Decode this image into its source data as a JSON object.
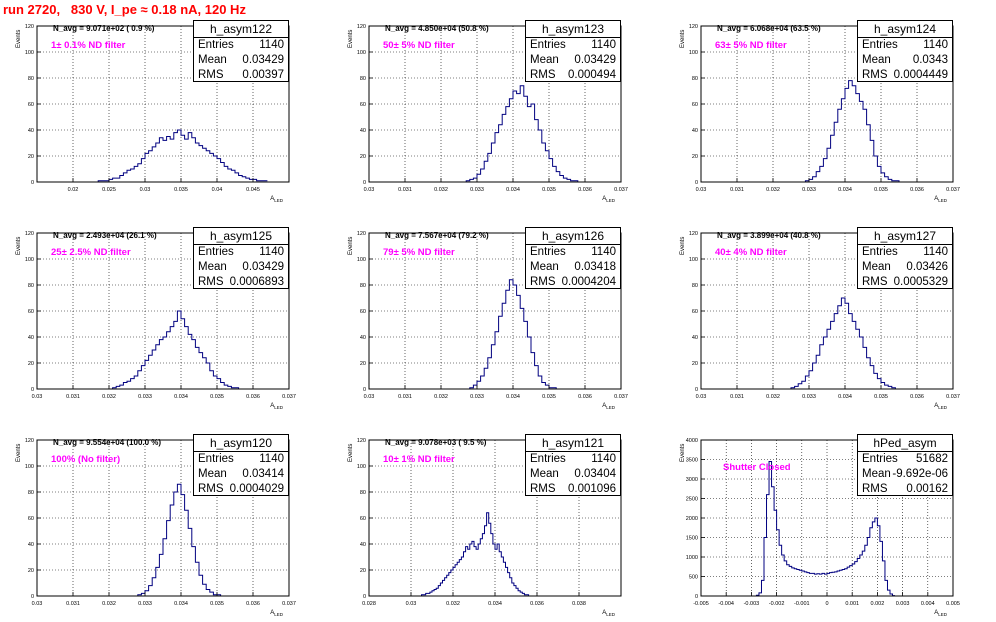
{
  "page_title": "run 2720,   830 V, I_pe ≈ 0.18 nA, 120 Hz",
  "colors": {
    "title": "#ff0000",
    "filter_text": "#ff00ff",
    "histogram_line": "#000080",
    "grid": "#000000"
  },
  "chart_data": [
    {
      "type": "histogram",
      "stats": {
        "name": "h_asym122",
        "entries": "1140",
        "mean": "0.03429",
        "rms": "0.00397"
      },
      "n_avg": "N_avg = 9.071e+02 ( 0.9 %)",
      "filter": "1± 0.1% ND filter",
      "ylabel": "Events",
      "xlabel": "A_LED",
      "xlim": [
        0.015,
        0.05
      ],
      "ylim": [
        0,
        120
      ],
      "xticks": [
        0.02,
        0.025,
        0.03,
        0.035,
        0.04,
        0.045
      ],
      "xtick_labels": [
        "0.02",
        "0.025",
        "0.03",
        "0.035",
        "0.04",
        "0.045"
      ],
      "yticks": [
        0,
        20,
        40,
        60,
        80,
        100,
        120
      ],
      "bins": {
        "start": 0.0235,
        "width": 0.0005,
        "counts": [
          1,
          1,
          1,
          2,
          3,
          3,
          5,
          7,
          9,
          10,
          12,
          14,
          18,
          22,
          24,
          27,
          30,
          34,
          32,
          35,
          33,
          38,
          40,
          36,
          33,
          38,
          34,
          30,
          28,
          26,
          24,
          22,
          20,
          18,
          15,
          12,
          10,
          9,
          7,
          5,
          4,
          3,
          2,
          2,
          1,
          1,
          1
        ]
      }
    },
    {
      "type": "histogram",
      "stats": {
        "name": "h_asym123",
        "entries": "1140",
        "mean": "0.03429",
        "rms": "0.000494"
      },
      "n_avg": "N_avg = 4.850e+04 (50.8 %)",
      "filter": "50± 5% ND filter",
      "ylabel": "Events",
      "xlabel": "A_LED",
      "xlim": [
        0.03,
        0.037
      ],
      "ylim": [
        0,
        120
      ],
      "xticks": [
        0.03,
        0.031,
        0.032,
        0.033,
        0.034,
        0.035,
        0.036,
        0.037
      ],
      "xtick_labels": [
        "0.03",
        "0.031",
        "0.032",
        "0.033",
        "0.034",
        "0.035",
        "0.036",
        "0.037"
      ],
      "yticks": [
        0,
        20,
        40,
        60,
        80,
        100,
        120
      ],
      "bins": {
        "start": 0.0327,
        "width": 0.0001,
        "counts": [
          1,
          2,
          3,
          6,
          10,
          16,
          22,
          30,
          38,
          44,
          52,
          58,
          64,
          70,
          68,
          74,
          66,
          58,
          60,
          48,
          40,
          30,
          24,
          18,
          12,
          8,
          5,
          3,
          2,
          1,
          1,
          0
        ]
      }
    },
    {
      "type": "histogram",
      "stats": {
        "name": "h_asym124",
        "entries": "1140",
        "mean": "0.0343",
        "rms": "0.0004449"
      },
      "n_avg": "N_avg = 6.068e+04 (63.5 %)",
      "filter": "63± 5% ND filter",
      "ylabel": "Events",
      "xlabel": "A_LED",
      "xlim": [
        0.03,
        0.037
      ],
      "ylim": [
        0,
        120
      ],
      "xticks": [
        0.03,
        0.031,
        0.032,
        0.033,
        0.034,
        0.035,
        0.036,
        0.037
      ],
      "xtick_labels": [
        "0.03",
        "0.031",
        "0.032",
        "0.033",
        "0.034",
        "0.035",
        "0.036",
        "0.037"
      ],
      "yticks": [
        0,
        20,
        40,
        60,
        80,
        100,
        120
      ],
      "bins": {
        "start": 0.0329,
        "width": 0.0001,
        "counts": [
          1,
          2,
          4,
          8,
          12,
          18,
          26,
          36,
          46,
          56,
          64,
          72,
          78,
          74,
          68,
          62,
          56,
          44,
          32,
          20,
          12,
          7,
          4,
          2,
          1,
          1,
          0
        ]
      }
    },
    {
      "type": "histogram",
      "stats": {
        "name": "h_asym125",
        "entries": "1140",
        "mean": "0.03429",
        "rms": "0.0006893"
      },
      "n_avg": "N_avg = 2.493e+04 (26.1 %)",
      "filter": "25± 2.5% ND filter",
      "ylabel": "Events",
      "xlabel": "A_LED",
      "xlim": [
        0.03,
        0.037
      ],
      "ylim": [
        0,
        120
      ],
      "xticks": [
        0.03,
        0.031,
        0.032,
        0.033,
        0.034,
        0.035,
        0.036,
        0.037
      ],
      "xtick_labels": [
        "0.03",
        "0.031",
        "0.032",
        "0.033",
        "0.034",
        "0.035",
        "0.036",
        "0.037"
      ],
      "yticks": [
        0,
        20,
        40,
        60,
        80,
        100,
        120
      ],
      "bins": {
        "start": 0.0321,
        "width": 0.0001,
        "counts": [
          1,
          2,
          3,
          5,
          6,
          8,
          10,
          14,
          18,
          22,
          26,
          30,
          34,
          38,
          40,
          44,
          48,
          52,
          60,
          54,
          48,
          42,
          38,
          32,
          28,
          24,
          20,
          14,
          10,
          8,
          5,
          3,
          2,
          1,
          1,
          0
        ]
      }
    },
    {
      "type": "histogram",
      "stats": {
        "name": "h_asym126",
        "entries": "1140",
        "mean": "0.03418",
        "rms": "0.0004204"
      },
      "n_avg": "N_avg = 7.567e+04 (79.2 %)",
      "filter": "79± 5% ND filter",
      "ylabel": "Events",
      "xlabel": "A_LED",
      "xlim": [
        0.03,
        0.037
      ],
      "ylim": [
        0,
        120
      ],
      "xticks": [
        0.03,
        0.031,
        0.032,
        0.033,
        0.034,
        0.035,
        0.036,
        0.037
      ],
      "xtick_labels": [
        "0.03",
        "0.031",
        "0.032",
        "0.033",
        "0.034",
        "0.035",
        "0.036",
        "0.037"
      ],
      "yticks": [
        0,
        20,
        40,
        60,
        80,
        100,
        120
      ],
      "bins": {
        "start": 0.0328,
        "width": 0.0001,
        "counts": [
          1,
          3,
          6,
          10,
          16,
          24,
          34,
          44,
          56,
          66,
          76,
          84,
          80,
          72,
          62,
          52,
          40,
          28,
          18,
          10,
          5,
          3,
          1,
          1,
          0
        ]
      }
    },
    {
      "type": "histogram",
      "stats": {
        "name": "h_asym127",
        "entries": "1140",
        "mean": "0.03426",
        "rms": "0.0005329"
      },
      "n_avg": "N_avg = 3.899e+04 (40.8 %)",
      "filter": "40± 4% ND filter",
      "ylabel": "Events",
      "xlabel": "A_LED",
      "xlim": [
        0.03,
        0.037
      ],
      "ylim": [
        0,
        120
      ],
      "xticks": [
        0.03,
        0.031,
        0.032,
        0.033,
        0.034,
        0.035,
        0.036,
        0.037
      ],
      "xtick_labels": [
        "0.03",
        "0.031",
        "0.032",
        "0.033",
        "0.034",
        "0.035",
        "0.036",
        "0.037"
      ],
      "yticks": [
        0,
        20,
        40,
        60,
        80,
        100,
        120
      ],
      "bins": {
        "start": 0.0325,
        "width": 0.0001,
        "counts": [
          1,
          2,
          4,
          6,
          10,
          14,
          20,
          26,
          34,
          40,
          46,
          52,
          58,
          64,
          70,
          66,
          58,
          52,
          46,
          40,
          32,
          24,
          18,
          12,
          8,
          5,
          3,
          2,
          1,
          0
        ]
      }
    },
    {
      "type": "histogram",
      "stats": {
        "name": "h_asym120",
        "entries": "1140",
        "mean": "0.03414",
        "rms": "0.0004029"
      },
      "n_avg": "N_avg = 9.554e+04 (100.0 %)",
      "filter": "100% (No filter)",
      "ylabel": "Events",
      "xlabel": "A_LED",
      "xlim": [
        0.03,
        0.037
      ],
      "ylim": [
        0,
        120
      ],
      "xticks": [
        0.03,
        0.031,
        0.032,
        0.033,
        0.034,
        0.035,
        0.036,
        0.037
      ],
      "xtick_labels": [
        "0.03",
        "0.031",
        "0.032",
        "0.033",
        "0.034",
        "0.035",
        "0.036",
        "0.037"
      ],
      "yticks": [
        0,
        20,
        40,
        60,
        80,
        100,
        120
      ],
      "bins": {
        "start": 0.0328,
        "width": 0.0001,
        "counts": [
          1,
          2,
          4,
          8,
          14,
          22,
          32,
          44,
          58,
          70,
          80,
          86,
          78,
          66,
          52,
          38,
          26,
          16,
          9,
          5,
          3,
          1,
          1,
          0
        ]
      }
    },
    {
      "type": "histogram",
      "stats": {
        "name": "h_asym121",
        "entries": "1140",
        "mean": "0.03404",
        "rms": "0.001096"
      },
      "n_avg": "N_avg = 9.078e+03 ( 9.5 %)",
      "filter": "10± 1% ND filter",
      "ylabel": "Events",
      "xlabel": "A_LED",
      "xlim": [
        0.028,
        0.04
      ],
      "ylim": [
        0,
        120
      ],
      "xticks": [
        0.028,
        0.03,
        0.032,
        0.034,
        0.036,
        0.038
      ],
      "xtick_labels": [
        "0.028",
        "0.03",
        "0.032",
        "0.034",
        "0.036",
        "0.038"
      ],
      "yticks": [
        0,
        20,
        40,
        60,
        80,
        100,
        120
      ],
      "bins": {
        "start": 0.0305,
        "width": 0.0001,
        "counts": [
          1,
          1,
          2,
          2,
          3,
          4,
          5,
          6,
          8,
          10,
          12,
          14,
          16,
          18,
          20,
          22,
          24,
          26,
          28,
          30,
          34,
          38,
          36,
          40,
          42,
          38,
          36,
          40,
          44,
          48,
          54,
          64,
          56,
          48,
          40,
          36,
          40,
          34,
          30,
          26,
          22,
          18,
          14,
          10,
          8,
          6,
          4,
          3,
          2,
          1,
          1,
          0
        ]
      }
    },
    {
      "type": "histogram",
      "stats": {
        "name": "hPed_asym",
        "entries": "51682",
        "mean": "-9.692e-06",
        "rms": "0.00162"
      },
      "n_avg": "",
      "filter": "Shutter Closed",
      "ylabel": "Events",
      "xlabel": "A_LED",
      "xlim": [
        -0.005,
        0.005
      ],
      "ylim": [
        0,
        4000
      ],
      "xticks": [
        -0.005,
        -0.004,
        -0.003,
        -0.002,
        -0.001,
        0,
        0.001,
        0.002,
        0.003,
        0.004,
        0.005
      ],
      "xtick_labels": [
        "-0.005",
        "-0.004",
        "-0.003",
        "-0.002",
        "-0.001",
        "0",
        "0.001",
        "0.002",
        "0.003",
        "0.004",
        "0.005"
      ],
      "yticks": [
        0,
        500,
        1000,
        1500,
        2000,
        2500,
        3000,
        3500,
        4000
      ],
      "bins": {
        "start": -0.0028,
        "width": 0.0001,
        "counts": [
          20,
          80,
          400,
          1500,
          2600,
          3450,
          2800,
          2200,
          1700,
          1300,
          1050,
          900,
          800,
          760,
          720,
          700,
          680,
          660,
          640,
          620,
          600,
          580,
          580,
          560,
          570,
          560,
          580,
          560,
          580,
          600,
          610,
          620,
          640,
          660,
          680,
          700,
          740,
          780,
          820,
          880,
          960,
          1050,
          1150,
          1300,
          1500,
          1750,
          1900,
          2000,
          1800,
          1400,
          900,
          400,
          150,
          50,
          10
        ]
      }
    }
  ]
}
